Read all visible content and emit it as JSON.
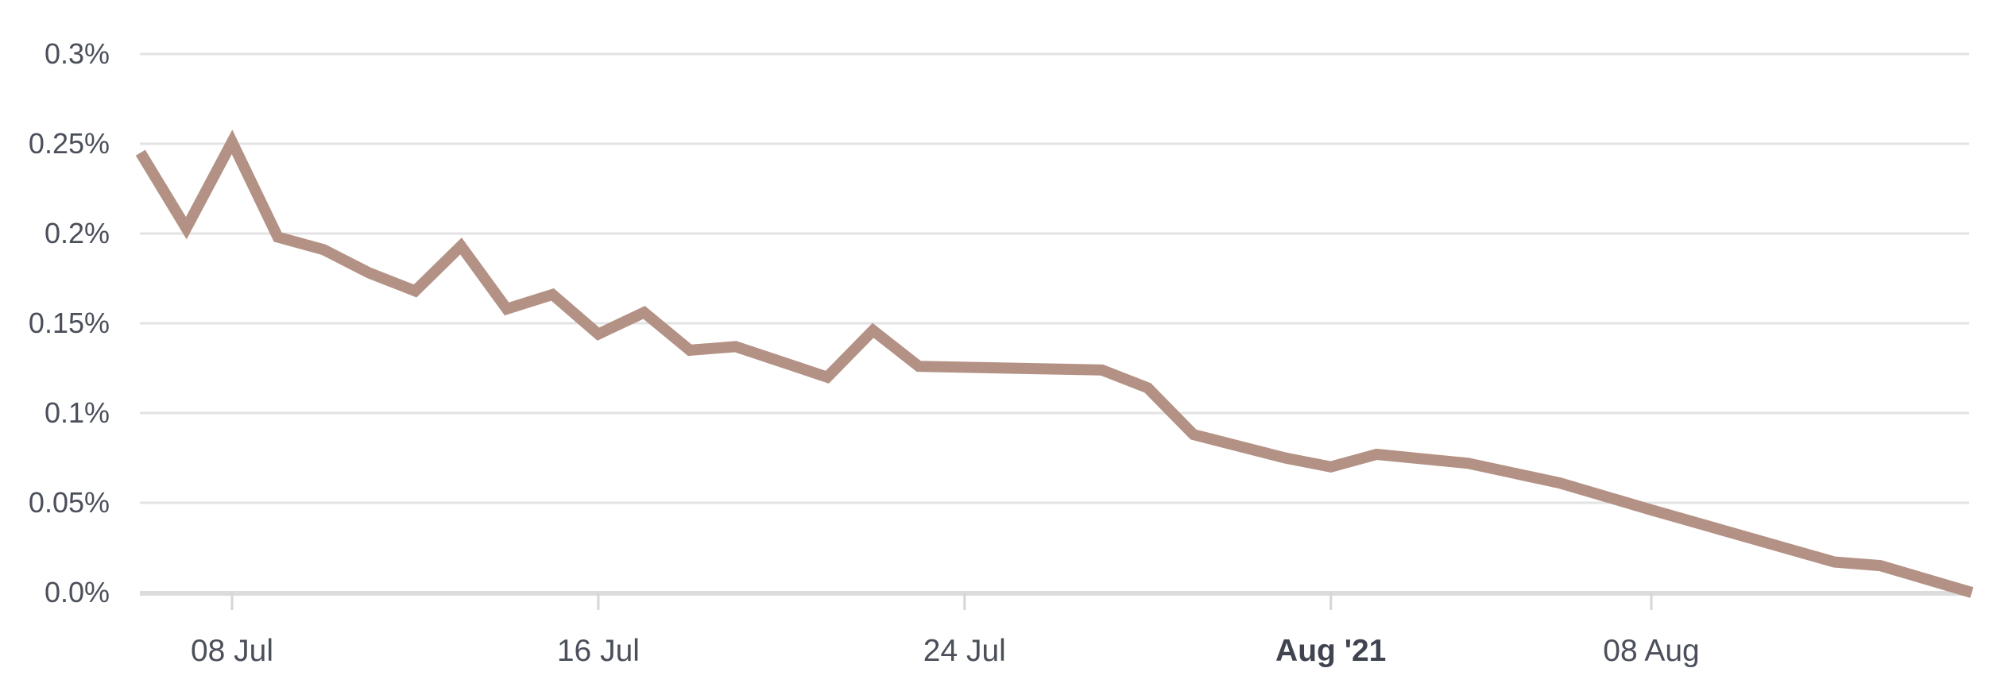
{
  "chart_data": {
    "type": "line",
    "title": "",
    "xlabel": "",
    "ylabel": "",
    "x_axis_type": "date",
    "y_axis_format": "percent",
    "ylim": [
      0,
      0.3
    ],
    "y_ticks": [
      {
        "value": 0.0,
        "label": "0.0%"
      },
      {
        "value": 0.05,
        "label": "0.05%"
      },
      {
        "value": 0.1,
        "label": "0.1%"
      },
      {
        "value": 0.15,
        "label": "0.15%"
      },
      {
        "value": 0.2,
        "label": "0.2%"
      },
      {
        "value": 0.25,
        "label": "0.25%"
      },
      {
        "value": 0.3,
        "label": "0.3%"
      }
    ],
    "x_ticks": [
      {
        "date": "2021-07-08",
        "label": "08 Jul",
        "bold": false
      },
      {
        "date": "2021-07-16",
        "label": "16 Jul",
        "bold": false
      },
      {
        "date": "2021-07-24",
        "label": "24 Jul",
        "bold": false
      },
      {
        "date": "2021-08-01",
        "label": "Aug '21",
        "bold": true
      },
      {
        "date": "2021-08-08",
        "label": "08 Aug",
        "bold": false
      }
    ],
    "grid": true,
    "legend": "none",
    "series": [
      {
        "color": "#b39285",
        "points": [
          {
            "x": "2021-07-06",
            "y": 0.245
          },
          {
            "x": "2021-07-07",
            "y": 0.203
          },
          {
            "x": "2021-07-08",
            "y": 0.251
          },
          {
            "x": "2021-07-09",
            "y": 0.198
          },
          {
            "x": "2021-07-10",
            "y": 0.191
          },
          {
            "x": "2021-07-11",
            "y": 0.178
          },
          {
            "x": "2021-07-12",
            "y": 0.168
          },
          {
            "x": "2021-07-13",
            "y": 0.193
          },
          {
            "x": "2021-07-14",
            "y": 0.158
          },
          {
            "x": "2021-07-15",
            "y": 0.166
          },
          {
            "x": "2021-07-16",
            "y": 0.144
          },
          {
            "x": "2021-07-17",
            "y": 0.156
          },
          {
            "x": "2021-07-18",
            "y": 0.135
          },
          {
            "x": "2021-07-19",
            "y": 0.137
          },
          {
            "x": "2021-07-21",
            "y": 0.12
          },
          {
            "x": "2021-07-22",
            "y": 0.146
          },
          {
            "x": "2021-07-23",
            "y": 0.126
          },
          {
            "x": "2021-07-27",
            "y": 0.124
          },
          {
            "x": "2021-07-28",
            "y": 0.114
          },
          {
            "x": "2021-07-29",
            "y": 0.088
          },
          {
            "x": "2021-07-31",
            "y": 0.075
          },
          {
            "x": "2021-08-01",
            "y": 0.07
          },
          {
            "x": "2021-08-02",
            "y": 0.077
          },
          {
            "x": "2021-08-04",
            "y": 0.072
          },
          {
            "x": "2021-08-06",
            "y": 0.061
          },
          {
            "x": "2021-08-08",
            "y": 0.046
          },
          {
            "x": "2021-08-12",
            "y": 0.017
          },
          {
            "x": "2021-08-13",
            "y": 0.015
          },
          {
            "x": "2021-08-15",
            "y": 0.0
          }
        ]
      }
    ]
  }
}
